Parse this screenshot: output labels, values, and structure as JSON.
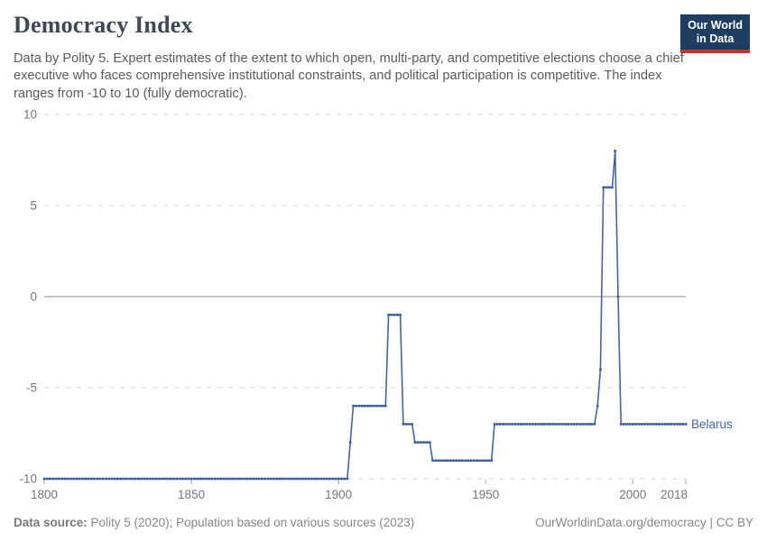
{
  "header": {
    "title": "Democracy Index",
    "subtitle": "Data by Polity 5. Expert estimates of the extent to which open, multi-party, and competitive elections choose a chief executive who faces comprehensive institutional constraints, and political participation is competitive. The index ranges from -10 to 10 (fully democratic).",
    "logo": {
      "line1": "Our World",
      "line2": "in Data"
    }
  },
  "chart_data": {
    "type": "line",
    "title": "Democracy Index",
    "entity": "Belarus",
    "xlabel": "",
    "ylabel": "",
    "x_range": [
      1800,
      2018
    ],
    "y_range": [
      -10,
      10
    ],
    "x_ticks": [
      1800,
      1850,
      1900,
      1950,
      2000,
      2018
    ],
    "y_ticks": [
      10,
      5,
      0,
      -5,
      -10
    ],
    "grid": "horizontal dashed gridlines, solid line at 0",
    "legend_position": "label at end of line",
    "series": [
      {
        "name": "Belarus",
        "color": "#4566a4",
        "segments": [
          {
            "from": 1800,
            "to": 1903,
            "value": -10
          },
          {
            "from": 1904,
            "to": 1904,
            "value": -8
          },
          {
            "from": 1905,
            "to": 1916,
            "value": -6
          },
          {
            "from": 1917,
            "to": 1921,
            "value": -1
          },
          {
            "from": 1922,
            "to": 1925,
            "value": -7
          },
          {
            "from": 1926,
            "to": 1931,
            "value": -8
          },
          {
            "from": 1932,
            "to": 1952,
            "value": -9
          },
          {
            "from": 1953,
            "to": 1987,
            "value": -7
          },
          {
            "from": 1988,
            "to": 1988,
            "value": -6
          },
          {
            "from": 1989,
            "to": 1989,
            "value": -4
          },
          {
            "from": 1990,
            "to": 1993,
            "value": 6
          },
          {
            "from": 1994,
            "to": 1994,
            "value": 8
          },
          {
            "from": 1995,
            "to": 1995,
            "value": 0
          },
          {
            "from": 1996,
            "to": 2018,
            "value": -7
          }
        ]
      }
    ]
  },
  "footer": {
    "source_label": "Data source:",
    "source_text": " Polity 5 (2020); Population based on various sources (2023)",
    "right_text": "OurWorldinData.org/democracy | CC BY"
  },
  "colors": {
    "line": "#4566a4",
    "marker": "#3a5b99",
    "grid": "#dedede",
    "zero_line": "#a3a3a3",
    "axis_text": "#767676",
    "tick_mark": "#a3a3a3",
    "entity_label": "#4566a4",
    "logo_navy": "#1d3d63",
    "logo_red": "#c8342b"
  }
}
